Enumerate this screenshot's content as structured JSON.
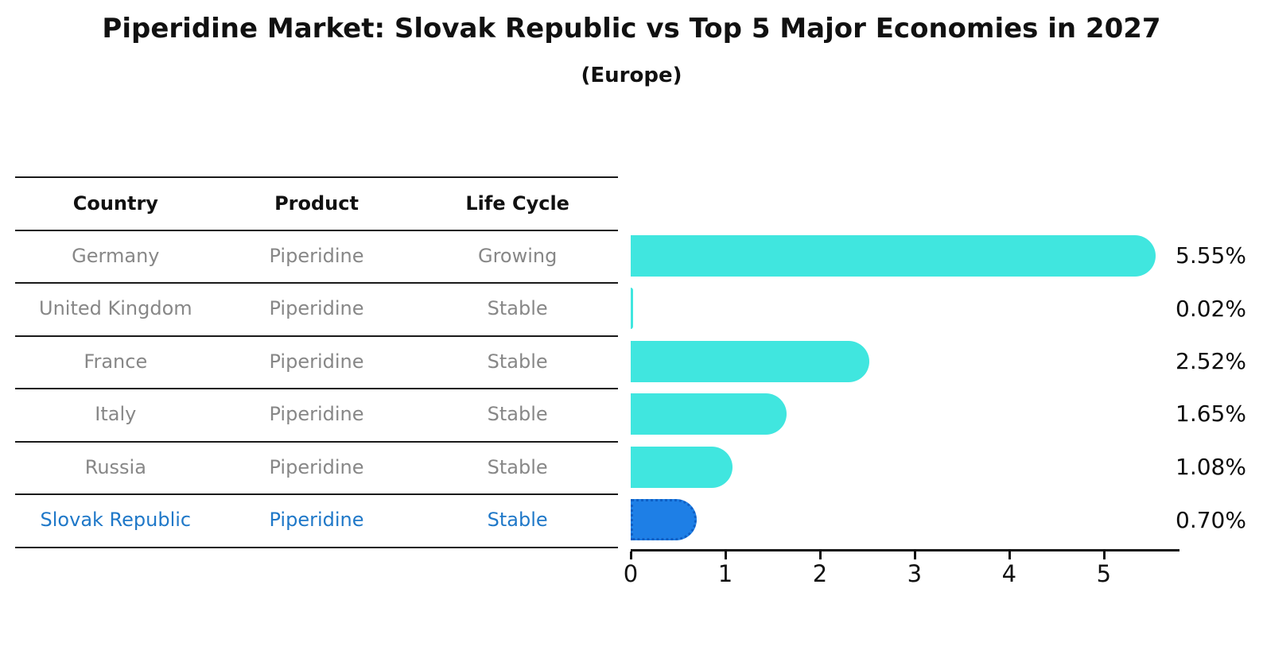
{
  "title": "Piperidine Market: Slovak Republic vs Top 5 Major Economies in 2027",
  "subtitle": "(Europe)",
  "table": {
    "headers": {
      "country": "Country",
      "product": "Product",
      "life_cycle": "Life Cycle"
    },
    "rows": [
      {
        "country": "Germany",
        "product": "Piperidine",
        "life_cycle": "Growing",
        "highlight": false
      },
      {
        "country": "United Kingdom",
        "product": "Piperidine",
        "life_cycle": "Stable",
        "highlight": false
      },
      {
        "country": "France",
        "product": "Piperidine",
        "life_cycle": "Stable",
        "highlight": false
      },
      {
        "country": "Italy",
        "product": "Piperidine",
        "life_cycle": "Stable",
        "highlight": false
      },
      {
        "country": "Russia",
        "product": "Piperidine",
        "life_cycle": "Stable",
        "highlight": false
      },
      {
        "country": "Slovak Republic",
        "product": "Piperidine",
        "life_cycle": "Stable",
        "highlight": true
      }
    ]
  },
  "chart_data": {
    "type": "bar",
    "orientation": "horizontal",
    "title": "Piperidine Market: Slovak Republic vs Top 5 Major Economies in 2027",
    "subtitle": "(Europe)",
    "categories": [
      "Germany",
      "United Kingdom",
      "France",
      "Italy",
      "Russia",
      "Slovak Republic"
    ],
    "values": [
      5.55,
      0.02,
      2.52,
      1.65,
      1.08,
      0.7
    ],
    "value_labels": [
      "5.55%",
      "0.02%",
      "2.52%",
      "1.65%",
      "1.08%",
      "0.70%"
    ],
    "x_ticks": [
      0,
      1,
      2,
      3,
      4,
      5
    ],
    "xlim": [
      0,
      5.8
    ],
    "grid": false,
    "bar_color": "#40E6DF",
    "highlight_color": "#1E7FE6",
    "highlight_index": 5,
    "highlight_text_color": "#1F78C8",
    "row_text_color": "#878787",
    "axis_color": "#111111"
  }
}
